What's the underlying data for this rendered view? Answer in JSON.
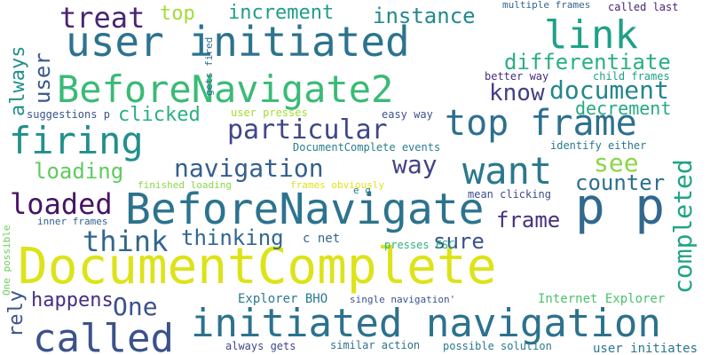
{
  "words": [
    {
      "text": "DocumentComplete",
      "color": "#dde318",
      "orient": "h"
    },
    {
      "text": "user initiated",
      "color": "#2c738e",
      "orient": "h"
    },
    {
      "text": "BeforeNavigate2",
      "color": "#3aba76",
      "orient": "h"
    },
    {
      "text": "BeforeNavigate",
      "color": "#2c738e",
      "orient": "h"
    },
    {
      "text": "initiated navigation",
      "color": "#2c728e",
      "orient": "h"
    },
    {
      "text": "called",
      "color": "#3b528b",
      "orient": "h"
    },
    {
      "text": "p p",
      "color": "#31688e",
      "orient": "h"
    },
    {
      "text": "firing",
      "color": "#21908d",
      "orient": "h"
    },
    {
      "text": "top frame",
      "color": "#2d708e",
      "orient": "h"
    },
    {
      "text": "want",
      "color": "#2a788e",
      "orient": "h"
    },
    {
      "text": "link",
      "color": "#1fa188",
      "orient": "h"
    },
    {
      "text": "completed",
      "color": "#20a386",
      "orient": "v"
    },
    {
      "text": "treat",
      "color": "#482475",
      "orient": "h"
    },
    {
      "text": "top",
      "color": "#a5db36",
      "orient": "h"
    },
    {
      "text": "increment",
      "color": "#1f9e89",
      "orient": "h"
    },
    {
      "text": "instance",
      "color": "#23898e",
      "orient": "h"
    },
    {
      "text": "differentiate",
      "color": "#2ab07f",
      "orient": "h"
    },
    {
      "text": "know",
      "color": "#433e85",
      "orient": "h"
    },
    {
      "text": "document",
      "color": "#24868e",
      "orient": "h"
    },
    {
      "text": "decrement",
      "color": "#24aa83",
      "orient": "h"
    },
    {
      "text": "particular",
      "color": "#3f4788",
      "orient": "h"
    },
    {
      "text": "clicked",
      "color": "#2ab07f",
      "orient": "h"
    },
    {
      "text": "navigation",
      "color": "#355f8d",
      "orient": "h"
    },
    {
      "text": "way",
      "color": "#414487",
      "orient": "h"
    },
    {
      "text": "see",
      "color": "#8bd646",
      "orient": "h"
    },
    {
      "text": "loading",
      "color": "#60ca60",
      "orient": "h"
    },
    {
      "text": "counter",
      "color": "#2e6e8e",
      "orient": "h"
    },
    {
      "text": "loaded",
      "color": "#471365",
      "orient": "h"
    },
    {
      "text": "frame",
      "color": "#46327e",
      "orient": "h"
    },
    {
      "text": "think",
      "color": "#31678e",
      "orient": "h"
    },
    {
      "text": "thinking",
      "color": "#31688e",
      "orient": "h"
    },
    {
      "text": "sure",
      "color": "#3b528b",
      "orient": "h"
    },
    {
      "text": "happens",
      "color": "#46307e",
      "orient": "h"
    },
    {
      "text": "One",
      "color": "#3b528b",
      "orient": "h"
    },
    {
      "text": "user",
      "color": "#38598c",
      "orient": "v"
    },
    {
      "text": "always",
      "color": "#21908d",
      "orient": "v"
    },
    {
      "text": "rely",
      "color": "#3b528b",
      "orient": "v"
    },
    {
      "text": "c net",
      "color": "#32658e",
      "orient": "h"
    },
    {
      "text": "Explorer BHO",
      "color": "#29798e",
      "orient": "h"
    },
    {
      "text": "Internet Explorer",
      "color": "#4ac16d",
      "orient": "h"
    },
    {
      "text": "multiple frames",
      "color": "#32658e",
      "orient": "h"
    },
    {
      "text": "called last",
      "color": "#482475",
      "orient": "h"
    },
    {
      "text": "better way",
      "color": "#472f7d",
      "orient": "h"
    },
    {
      "text": "child frames",
      "color": "#1fa088",
      "orient": "h"
    },
    {
      "text": "suggestions p",
      "color": "#3b528b",
      "orient": "h"
    },
    {
      "text": "user presses",
      "color": "#a5db36",
      "orient": "h"
    },
    {
      "text": "easy way",
      "color": "#3b528b",
      "orient": "h"
    },
    {
      "text": "DocumentComplete events",
      "color": "#287d8e",
      "orient": "h"
    },
    {
      "text": "identify either",
      "color": "#2a778e",
      "orient": "h"
    },
    {
      "text": "finished loading",
      "color": "#8bd646",
      "orient": "h"
    },
    {
      "text": "frames obviously",
      "color": "#dde318",
      "orient": "h"
    },
    {
      "text": "e g",
      "color": "#2a788e",
      "orient": "h"
    },
    {
      "text": "mean clicking",
      "color": "#3e4c8a",
      "orient": "h"
    },
    {
      "text": "inner frames",
      "color": "#34618d",
      "orient": "h"
    },
    {
      "text": "presses ESC",
      "color": "#2db27d",
      "orient": "h"
    },
    {
      "text": "single navigation'",
      "color": "#3a548c",
      "orient": "h"
    },
    {
      "text": "always gets",
      "color": "#3e4989",
      "orient": "h"
    },
    {
      "text": "similar action",
      "color": "#2d718e",
      "orient": "h"
    },
    {
      "text": "possible solution",
      "color": "#29798e",
      "orient": "h"
    },
    {
      "text": "user initiates",
      "color": "#2a768e",
      "orient": "h"
    },
    {
      "text": "gets fired",
      "color": "#2e6e8e",
      "orient": "v"
    },
    {
      "text": "One possible",
      "color": "#6ccd5a",
      "orient": "v"
    }
  ]
}
